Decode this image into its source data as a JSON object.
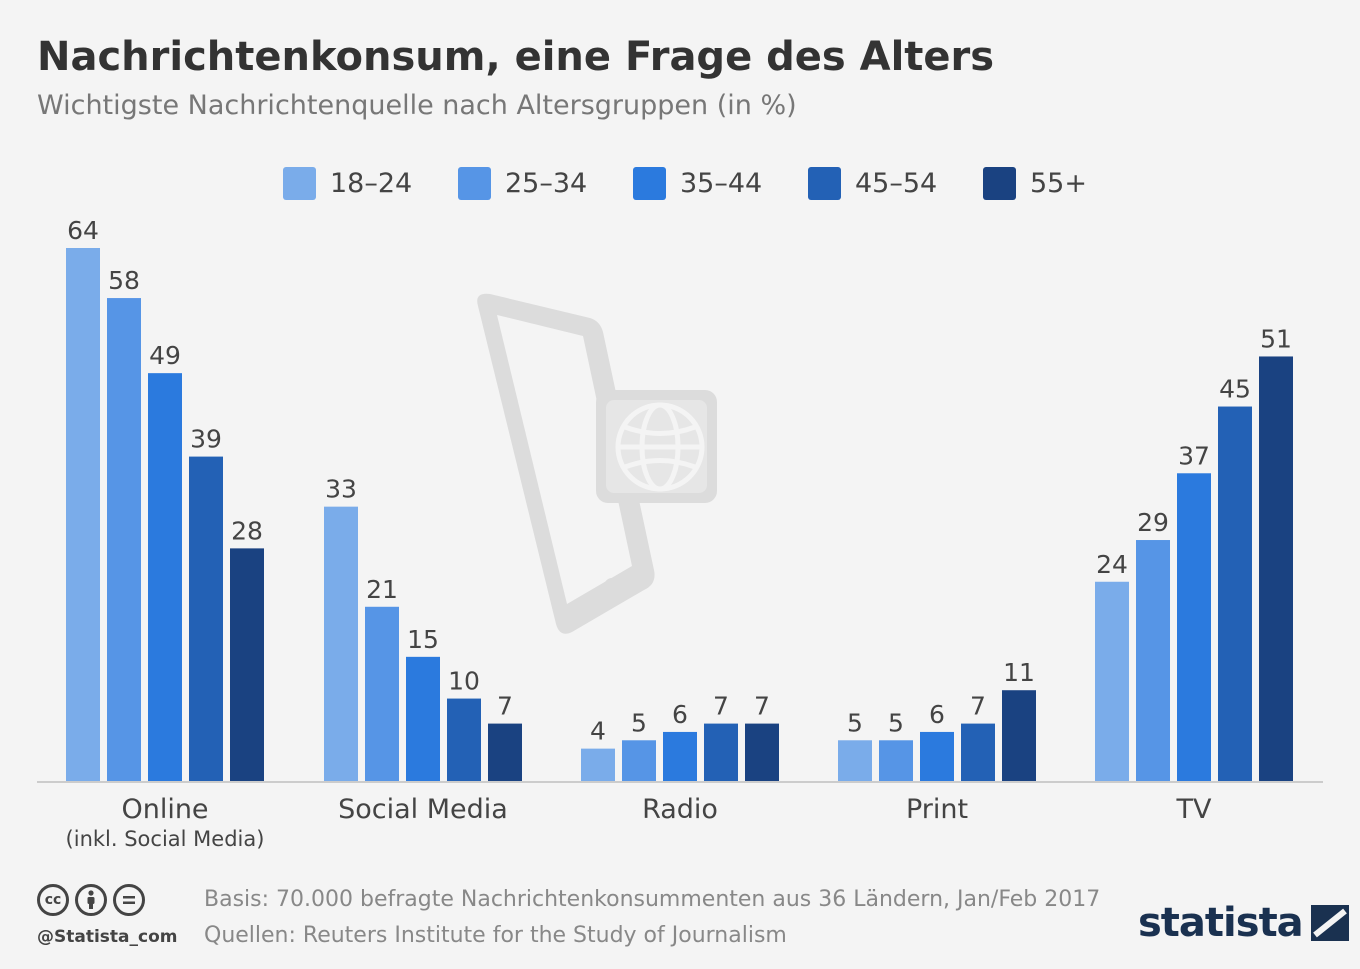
{
  "header": {
    "title": "Nachrichtenkonsum, eine Frage des Alters",
    "subtitle": "Wichtigste Nachrichtenquelle nach Altersgruppen (in %)"
  },
  "colors": {
    "series": [
      "#7aacea",
      "#5695e6",
      "#2b7ade",
      "#2361b5",
      "#1a4281"
    ],
    "axis": "#cccccc",
    "label": "#444444",
    "watermark": "#dddddd"
  },
  "chart_data": {
    "type": "bar",
    "categories": [
      "Online",
      "Social Media",
      "Radio",
      "Print",
      "TV"
    ],
    "category_sublabels": [
      "(inkl. Social Media)",
      "",
      "",
      "",
      ""
    ],
    "series": [
      {
        "name": "18–24",
        "values": [
          64,
          33,
          4,
          5,
          24
        ]
      },
      {
        "name": "25–34",
        "values": [
          58,
          21,
          5,
          5,
          29
        ]
      },
      {
        "name": "35–44",
        "values": [
          49,
          15,
          6,
          6,
          37
        ]
      },
      {
        "name": "45–54",
        "values": [
          39,
          10,
          7,
          7,
          45
        ]
      },
      {
        "name": "55+",
        "values": [
          28,
          7,
          7,
          11,
          51
        ]
      }
    ],
    "ylim": [
      0,
      64
    ],
    "grid": false,
    "legend": "top"
  },
  "footer": {
    "handle": "@Statista_com",
    "basis": "Basis: 70.000 befragte Nachrichtenkonsummenten aus 36 Ländern, Jan/Feb 2017",
    "sources": "Quellen: Reuters Institute for the Study of Journalism",
    "brand": "statista",
    "license_icons": [
      "cc-icon",
      "attribution-icon",
      "no-derivatives-icon"
    ]
  }
}
